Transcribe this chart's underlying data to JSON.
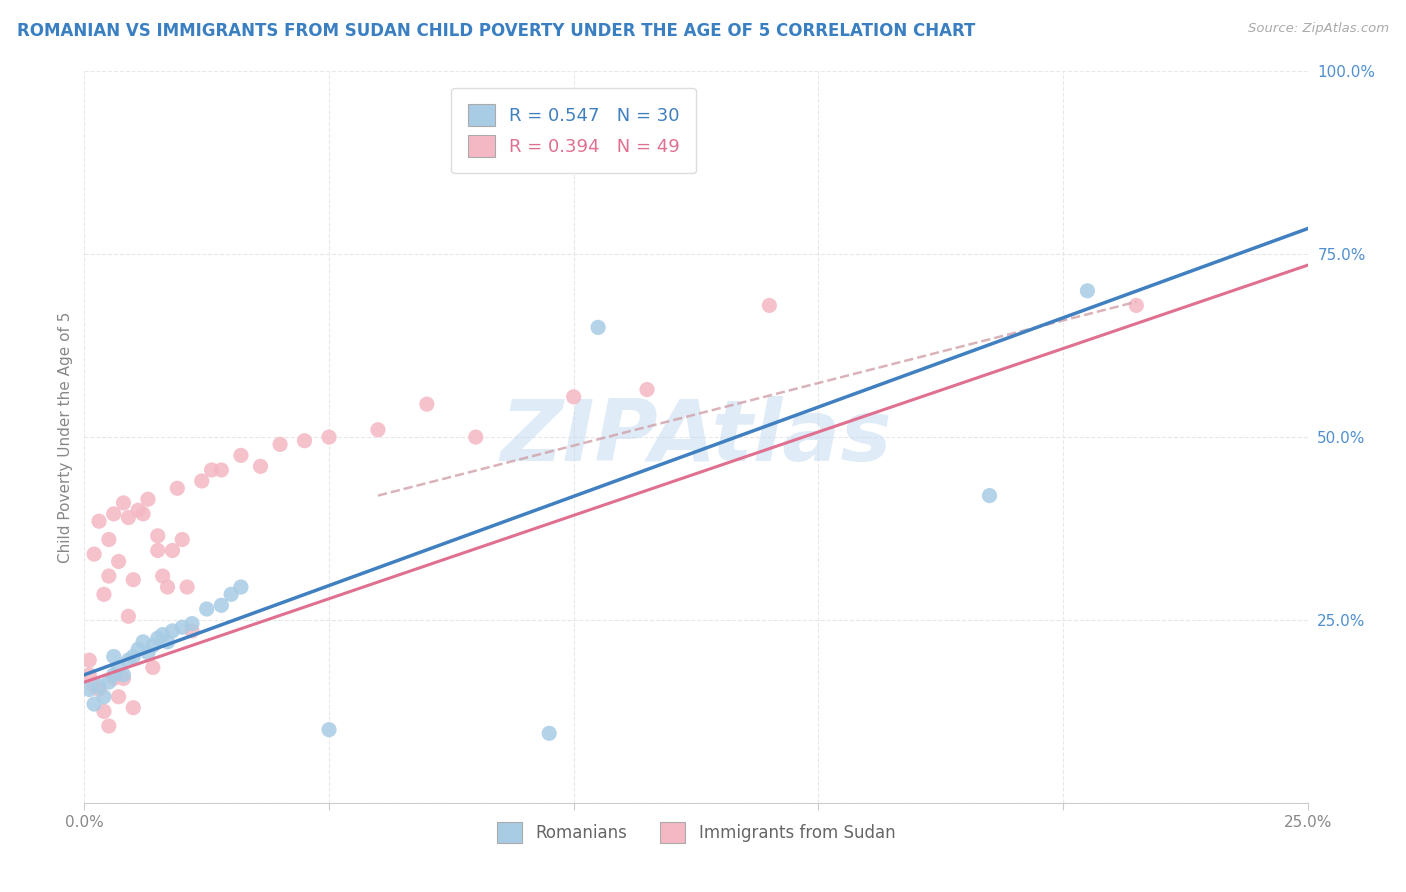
{
  "title": "ROMANIAN VS IMMIGRANTS FROM SUDAN CHILD POVERTY UNDER THE AGE OF 5 CORRELATION CHART",
  "source": "Source: ZipAtlas.com",
  "ylabel": "Child Poverty Under the Age of 5",
  "xlim": [
    0.0,
    0.25
  ],
  "ylim": [
    0.0,
    1.0
  ],
  "xticks": [
    0.0,
    0.05,
    0.1,
    0.15,
    0.2,
    0.25
  ],
  "yticks": [
    0.0,
    0.25,
    0.5,
    0.75,
    1.0
  ],
  "xticklabels": [
    "0.0%",
    "",
    "",
    "",
    "",
    "25.0%"
  ],
  "yticklabels": [
    "",
    "25.0%",
    "50.0%",
    "75.0%",
    "100.0%"
  ],
  "blue_R": 0.547,
  "blue_N": 30,
  "pink_R": 0.394,
  "pink_N": 49,
  "blue_dot_color": "#a8cce4",
  "pink_dot_color": "#f4b8c4",
  "blue_line_color": "#4080c0",
  "pink_line_color": "#e07090",
  "pink_dash_color": "#d0a0a8",
  "title_color": "#3a7fc1",
  "legend_label_blue": "Romanians",
  "legend_label_pink": "Immigrants from Sudan",
  "watermark": "ZIPAtlas",
  "background_color": "#ffffff",
  "grid_color": "#e8e8e8",
  "blue_scatter_x": [
    0.001,
    0.002,
    0.003,
    0.004,
    0.005,
    0.006,
    0.006,
    0.007,
    0.008,
    0.009,
    0.01,
    0.011,
    0.012,
    0.013,
    0.014,
    0.015,
    0.016,
    0.017,
    0.018,
    0.02,
    0.022,
    0.025,
    0.028,
    0.03,
    0.032,
    0.05,
    0.095,
    0.105,
    0.185,
    0.205
  ],
  "blue_scatter_y": [
    0.155,
    0.135,
    0.16,
    0.145,
    0.165,
    0.175,
    0.2,
    0.185,
    0.175,
    0.195,
    0.2,
    0.21,
    0.22,
    0.205,
    0.215,
    0.225,
    0.23,
    0.22,
    0.235,
    0.24,
    0.245,
    0.265,
    0.27,
    0.285,
    0.295,
    0.1,
    0.095,
    0.65,
    0.42,
    0.7
  ],
  "pink_scatter_x": [
    0.001,
    0.001,
    0.002,
    0.002,
    0.003,
    0.003,
    0.004,
    0.004,
    0.005,
    0.005,
    0.005,
    0.006,
    0.006,
    0.007,
    0.007,
    0.008,
    0.008,
    0.009,
    0.009,
    0.01,
    0.01,
    0.011,
    0.012,
    0.013,
    0.014,
    0.015,
    0.015,
    0.016,
    0.017,
    0.018,
    0.019,
    0.02,
    0.021,
    0.022,
    0.024,
    0.026,
    0.028,
    0.032,
    0.036,
    0.04,
    0.045,
    0.05,
    0.06,
    0.07,
    0.08,
    0.1,
    0.115,
    0.14,
    0.215
  ],
  "pink_scatter_y": [
    0.175,
    0.195,
    0.16,
    0.34,
    0.155,
    0.385,
    0.125,
    0.285,
    0.105,
    0.31,
    0.36,
    0.17,
    0.395,
    0.145,
    0.33,
    0.17,
    0.41,
    0.255,
    0.39,
    0.13,
    0.305,
    0.4,
    0.395,
    0.415,
    0.185,
    0.345,
    0.365,
    0.31,
    0.295,
    0.345,
    0.43,
    0.36,
    0.295,
    0.235,
    0.44,
    0.455,
    0.455,
    0.475,
    0.46,
    0.49,
    0.495,
    0.5,
    0.51,
    0.545,
    0.5,
    0.555,
    0.565,
    0.68,
    0.68
  ],
  "blue_regline_x": [
    0.0,
    0.25
  ],
  "blue_regline_y": [
    0.175,
    0.785
  ],
  "pink_regline_x": [
    0.0,
    0.25
  ],
  "pink_regline_y": [
    0.165,
    0.735
  ],
  "pink_dashline_x": [
    0.06,
    0.215
  ],
  "pink_dashline_y": [
    0.42,
    0.685
  ]
}
